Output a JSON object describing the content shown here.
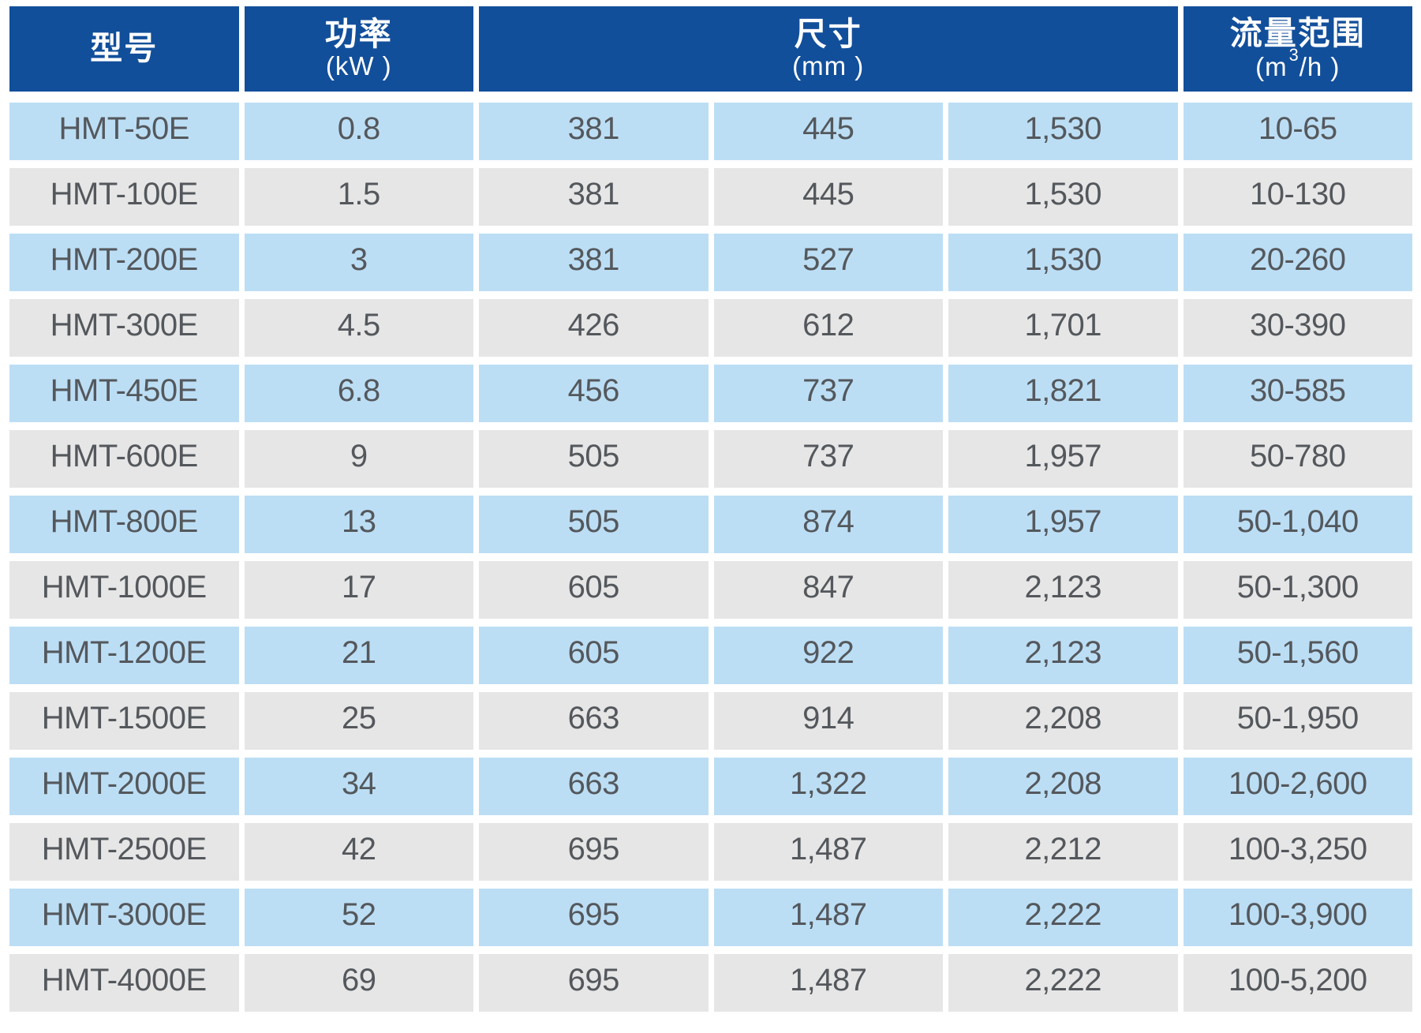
{
  "colors": {
    "header_bg": "#124f9b",
    "header_text": "#ffffff",
    "row_blue": "#bcdef5",
    "row_gray": "#e6e6e6",
    "cell_text": "#54585c",
    "background": "#ffffff"
  },
  "chart_data": {
    "type": "table",
    "header": {
      "model": {
        "title": "型号"
      },
      "power": {
        "title": "功率",
        "unit": "(kW )"
      },
      "dimensions": {
        "title": "尺寸",
        "unit": "(mm )",
        "columns_spanned": 3
      },
      "flow": {
        "title": "流量范围",
        "unit_prefix": "(m",
        "unit_sup": "3",
        "unit_suffix": "/h )"
      }
    },
    "rows": [
      {
        "model": "HMT-50E",
        "power_kw": "0.8",
        "dim1": "381",
        "dim2": "445",
        "dim3": "1,530",
        "flow_range": "10-65"
      },
      {
        "model": "HMT-100E",
        "power_kw": "1.5",
        "dim1": "381",
        "dim2": "445",
        "dim3": "1,530",
        "flow_range": "10-130"
      },
      {
        "model": "HMT-200E",
        "power_kw": "3",
        "dim1": "381",
        "dim2": "527",
        "dim3": "1,530",
        "flow_range": "20-260"
      },
      {
        "model": "HMT-300E",
        "power_kw": "4.5",
        "dim1": "426",
        "dim2": "612",
        "dim3": "1,701",
        "flow_range": "30-390"
      },
      {
        "model": "HMT-450E",
        "power_kw": "6.8",
        "dim1": "456",
        "dim2": "737",
        "dim3": "1,821",
        "flow_range": "30-585"
      },
      {
        "model": "HMT-600E",
        "power_kw": "9",
        "dim1": "505",
        "dim2": "737",
        "dim3": "1,957",
        "flow_range": "50-780"
      },
      {
        "model": "HMT-800E",
        "power_kw": "13",
        "dim1": "505",
        "dim2": "874",
        "dim3": "1,957",
        "flow_range": "50-1,040"
      },
      {
        "model": "HMT-1000E",
        "power_kw": "17",
        "dim1": "605",
        "dim2": "847",
        "dim3": "2,123",
        "flow_range": "50-1,300"
      },
      {
        "model": "HMT-1200E",
        "power_kw": "21",
        "dim1": "605",
        "dim2": "922",
        "dim3": "2,123",
        "flow_range": "50-1,560"
      },
      {
        "model": "HMT-1500E",
        "power_kw": "25",
        "dim1": "663",
        "dim2": "914",
        "dim3": "2,208",
        "flow_range": "50-1,950"
      },
      {
        "model": "HMT-2000E",
        "power_kw": "34",
        "dim1": "663",
        "dim2": "1,322",
        "dim3": "2,208",
        "flow_range": "100-2,600"
      },
      {
        "model": "HMT-2500E",
        "power_kw": "42",
        "dim1": "695",
        "dim2": "1,487",
        "dim3": "2,212",
        "flow_range": "100-3,250"
      },
      {
        "model": "HMT-3000E",
        "power_kw": "52",
        "dim1": "695",
        "dim2": "1,487",
        "dim3": "2,222",
        "flow_range": "100-3,900"
      },
      {
        "model": "HMT-4000E",
        "power_kw": "69",
        "dim1": "695",
        "dim2": "1,487",
        "dim3": "2,222",
        "flow_range": "100-5,200"
      }
    ]
  }
}
